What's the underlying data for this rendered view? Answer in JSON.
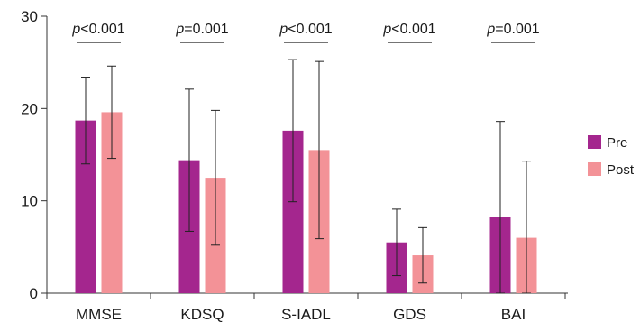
{
  "chart_data": {
    "type": "bar",
    "categories": [
      "MMSE",
      "KDSQ",
      "S-IADL",
      "GDS",
      "BAI"
    ],
    "series": [
      {
        "name": "Pre",
        "color": "#a4268e",
        "values": [
          18.7,
          14.4,
          17.6,
          5.5,
          8.3
        ],
        "error": [
          4.7,
          7.7,
          7.7,
          3.6,
          10.3
        ]
      },
      {
        "name": "Post",
        "color": "#f39297",
        "values": [
          19.6,
          12.5,
          15.5,
          4.1,
          6.0
        ],
        "error": [
          5.0,
          7.3,
          9.6,
          3.0,
          8.3
        ]
      }
    ],
    "ylim": [
      0,
      30
    ],
    "yticks": [
      0,
      10,
      20,
      30
    ],
    "annotations": [
      {
        "category": "MMSE",
        "prefix": "p",
        "operator": "<",
        "value": "0.001"
      },
      {
        "category": "KDSQ",
        "prefix": "p",
        "operator": "=",
        "value": "0.001"
      },
      {
        "category": "S-IADL",
        "prefix": "p",
        "operator": "<",
        "value": "0.001"
      },
      {
        "category": "GDS",
        "prefix": "p",
        "operator": "<",
        "value": "0.001"
      },
      {
        "category": "BAI",
        "prefix": "p",
        "operator": "=",
        "value": "0.001"
      }
    ],
    "legend": {
      "position": "right",
      "entries": [
        "Pre",
        "Post"
      ]
    },
    "grid": false,
    "title": "",
    "xlabel": "",
    "ylabel": ""
  }
}
